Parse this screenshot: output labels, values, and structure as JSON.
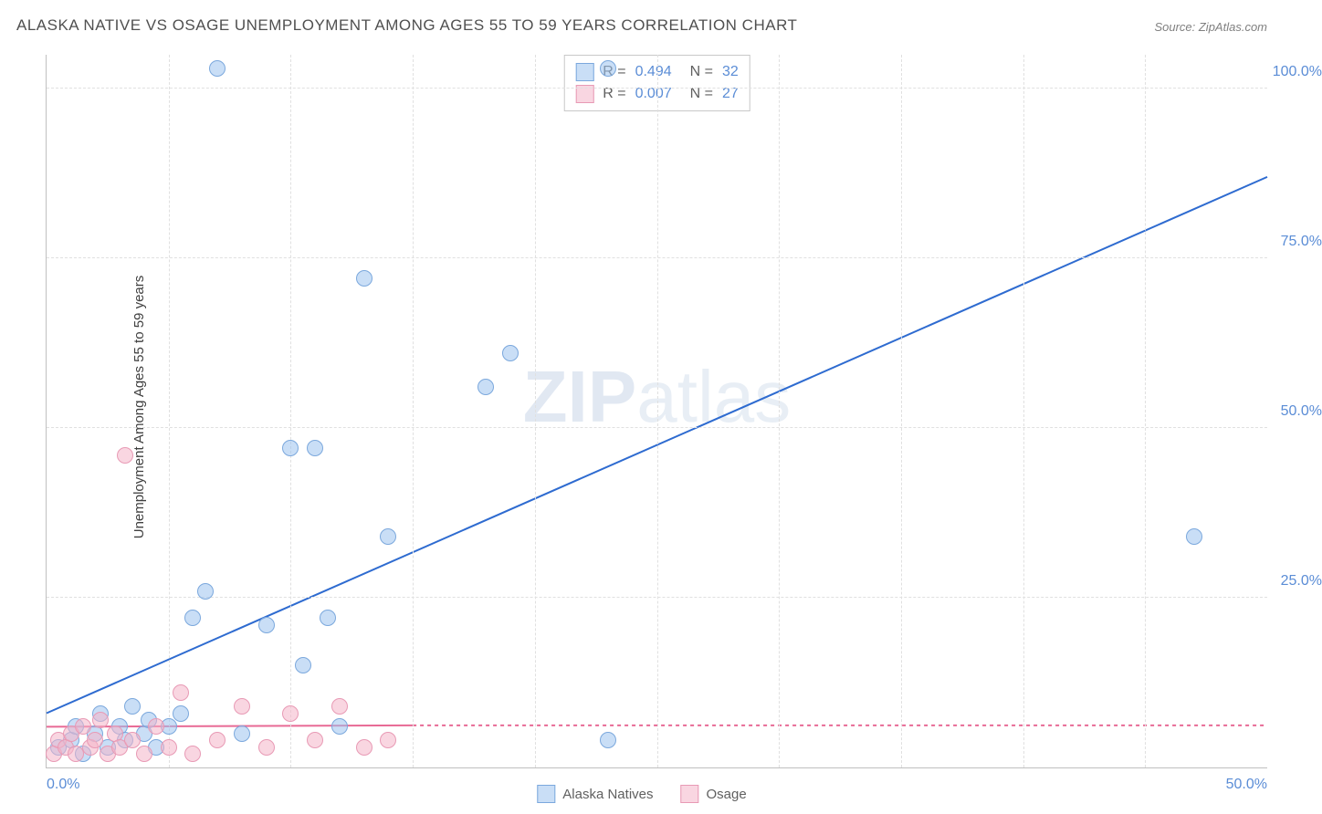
{
  "title": "ALASKA NATIVE VS OSAGE UNEMPLOYMENT AMONG AGES 55 TO 59 YEARS CORRELATION CHART",
  "source": "Source: ZipAtlas.com",
  "y_axis_label": "Unemployment Among Ages 55 to 59 years",
  "watermark_bold": "ZIP",
  "watermark_light": "atlas",
  "chart": {
    "type": "scatter",
    "xlim": [
      0,
      50
    ],
    "ylim": [
      0,
      105
    ],
    "x_ticks": [
      0,
      50
    ],
    "x_tick_labels": [
      "0.0%",
      "50.0%"
    ],
    "y_ticks": [
      25,
      50,
      75,
      100
    ],
    "y_tick_labels": [
      "25.0%",
      "50.0%",
      "75.0%",
      "100.0%"
    ],
    "x_gridlines_minor": [
      5,
      10,
      15,
      20,
      25,
      30,
      35,
      40,
      45
    ],
    "background_color": "#ffffff",
    "grid_color": "#e0e0e0",
    "axis_line_color": "#c0c0c0",
    "tick_label_color": "#5b8dd6",
    "marker_radius": 9,
    "marker_stroke_width": 1.5,
    "series": [
      {
        "name": "Alaska Natives",
        "fill_color": "rgba(157,195,238,0.55)",
        "stroke_color": "#7ba8dd",
        "r_value": "0.494",
        "n_value": "32",
        "trend": {
          "x1": 0,
          "y1": 8,
          "x2": 50,
          "y2": 87,
          "stroke": "#2e6bd0",
          "width": 2,
          "dash": "none",
          "extend_dash": false
        },
        "points": [
          [
            0.5,
            3
          ],
          [
            1,
            4
          ],
          [
            1.2,
            6
          ],
          [
            1.5,
            2
          ],
          [
            2,
            5
          ],
          [
            2.2,
            8
          ],
          [
            2.5,
            3
          ],
          [
            3,
            6
          ],
          [
            3.2,
            4
          ],
          [
            3.5,
            9
          ],
          [
            4,
            5
          ],
          [
            4.2,
            7
          ],
          [
            4.5,
            3
          ],
          [
            5,
            6
          ],
          [
            5.5,
            8
          ],
          [
            6,
            22
          ],
          [
            6.5,
            26
          ],
          [
            7,
            103
          ],
          [
            8,
            5
          ],
          [
            9,
            21
          ],
          [
            10,
            47
          ],
          [
            10.5,
            15
          ],
          [
            11,
            47
          ],
          [
            11.5,
            22
          ],
          [
            12,
            6
          ],
          [
            13,
            72
          ],
          [
            14,
            34
          ],
          [
            18,
            56
          ],
          [
            19,
            61
          ],
          [
            23,
            4
          ],
          [
            23,
            103
          ],
          [
            47,
            34
          ]
        ]
      },
      {
        "name": "Osage",
        "fill_color": "rgba(244,180,200,0.55)",
        "stroke_color": "#e89ab5",
        "r_value": "0.007",
        "n_value": "27",
        "trend": {
          "x1": 0,
          "y1": 6,
          "x2": 15,
          "y2": 6.2,
          "stroke": "#e86a95",
          "width": 2,
          "dash": "none",
          "extend_dash": true,
          "extend_to_x": 50
        },
        "points": [
          [
            0.3,
            2
          ],
          [
            0.5,
            4
          ],
          [
            0.8,
            3
          ],
          [
            1,
            5
          ],
          [
            1.2,
            2
          ],
          [
            1.5,
            6
          ],
          [
            1.8,
            3
          ],
          [
            2,
            4
          ],
          [
            2.2,
            7
          ],
          [
            2.5,
            2
          ],
          [
            2.8,
            5
          ],
          [
            3,
            3
          ],
          [
            3.2,
            46
          ],
          [
            3.5,
            4
          ],
          [
            4,
            2
          ],
          [
            4.5,
            6
          ],
          [
            5,
            3
          ],
          [
            5.5,
            11
          ],
          [
            6,
            2
          ],
          [
            7,
            4
          ],
          [
            8,
            9
          ],
          [
            9,
            3
          ],
          [
            10,
            8
          ],
          [
            11,
            4
          ],
          [
            12,
            9
          ],
          [
            13,
            3
          ],
          [
            14,
            4
          ]
        ]
      }
    ],
    "stats_box": {
      "r_label": "R =",
      "n_label": "N ="
    },
    "legend": {
      "series1_label": "Alaska Natives",
      "series2_label": "Osage"
    }
  }
}
